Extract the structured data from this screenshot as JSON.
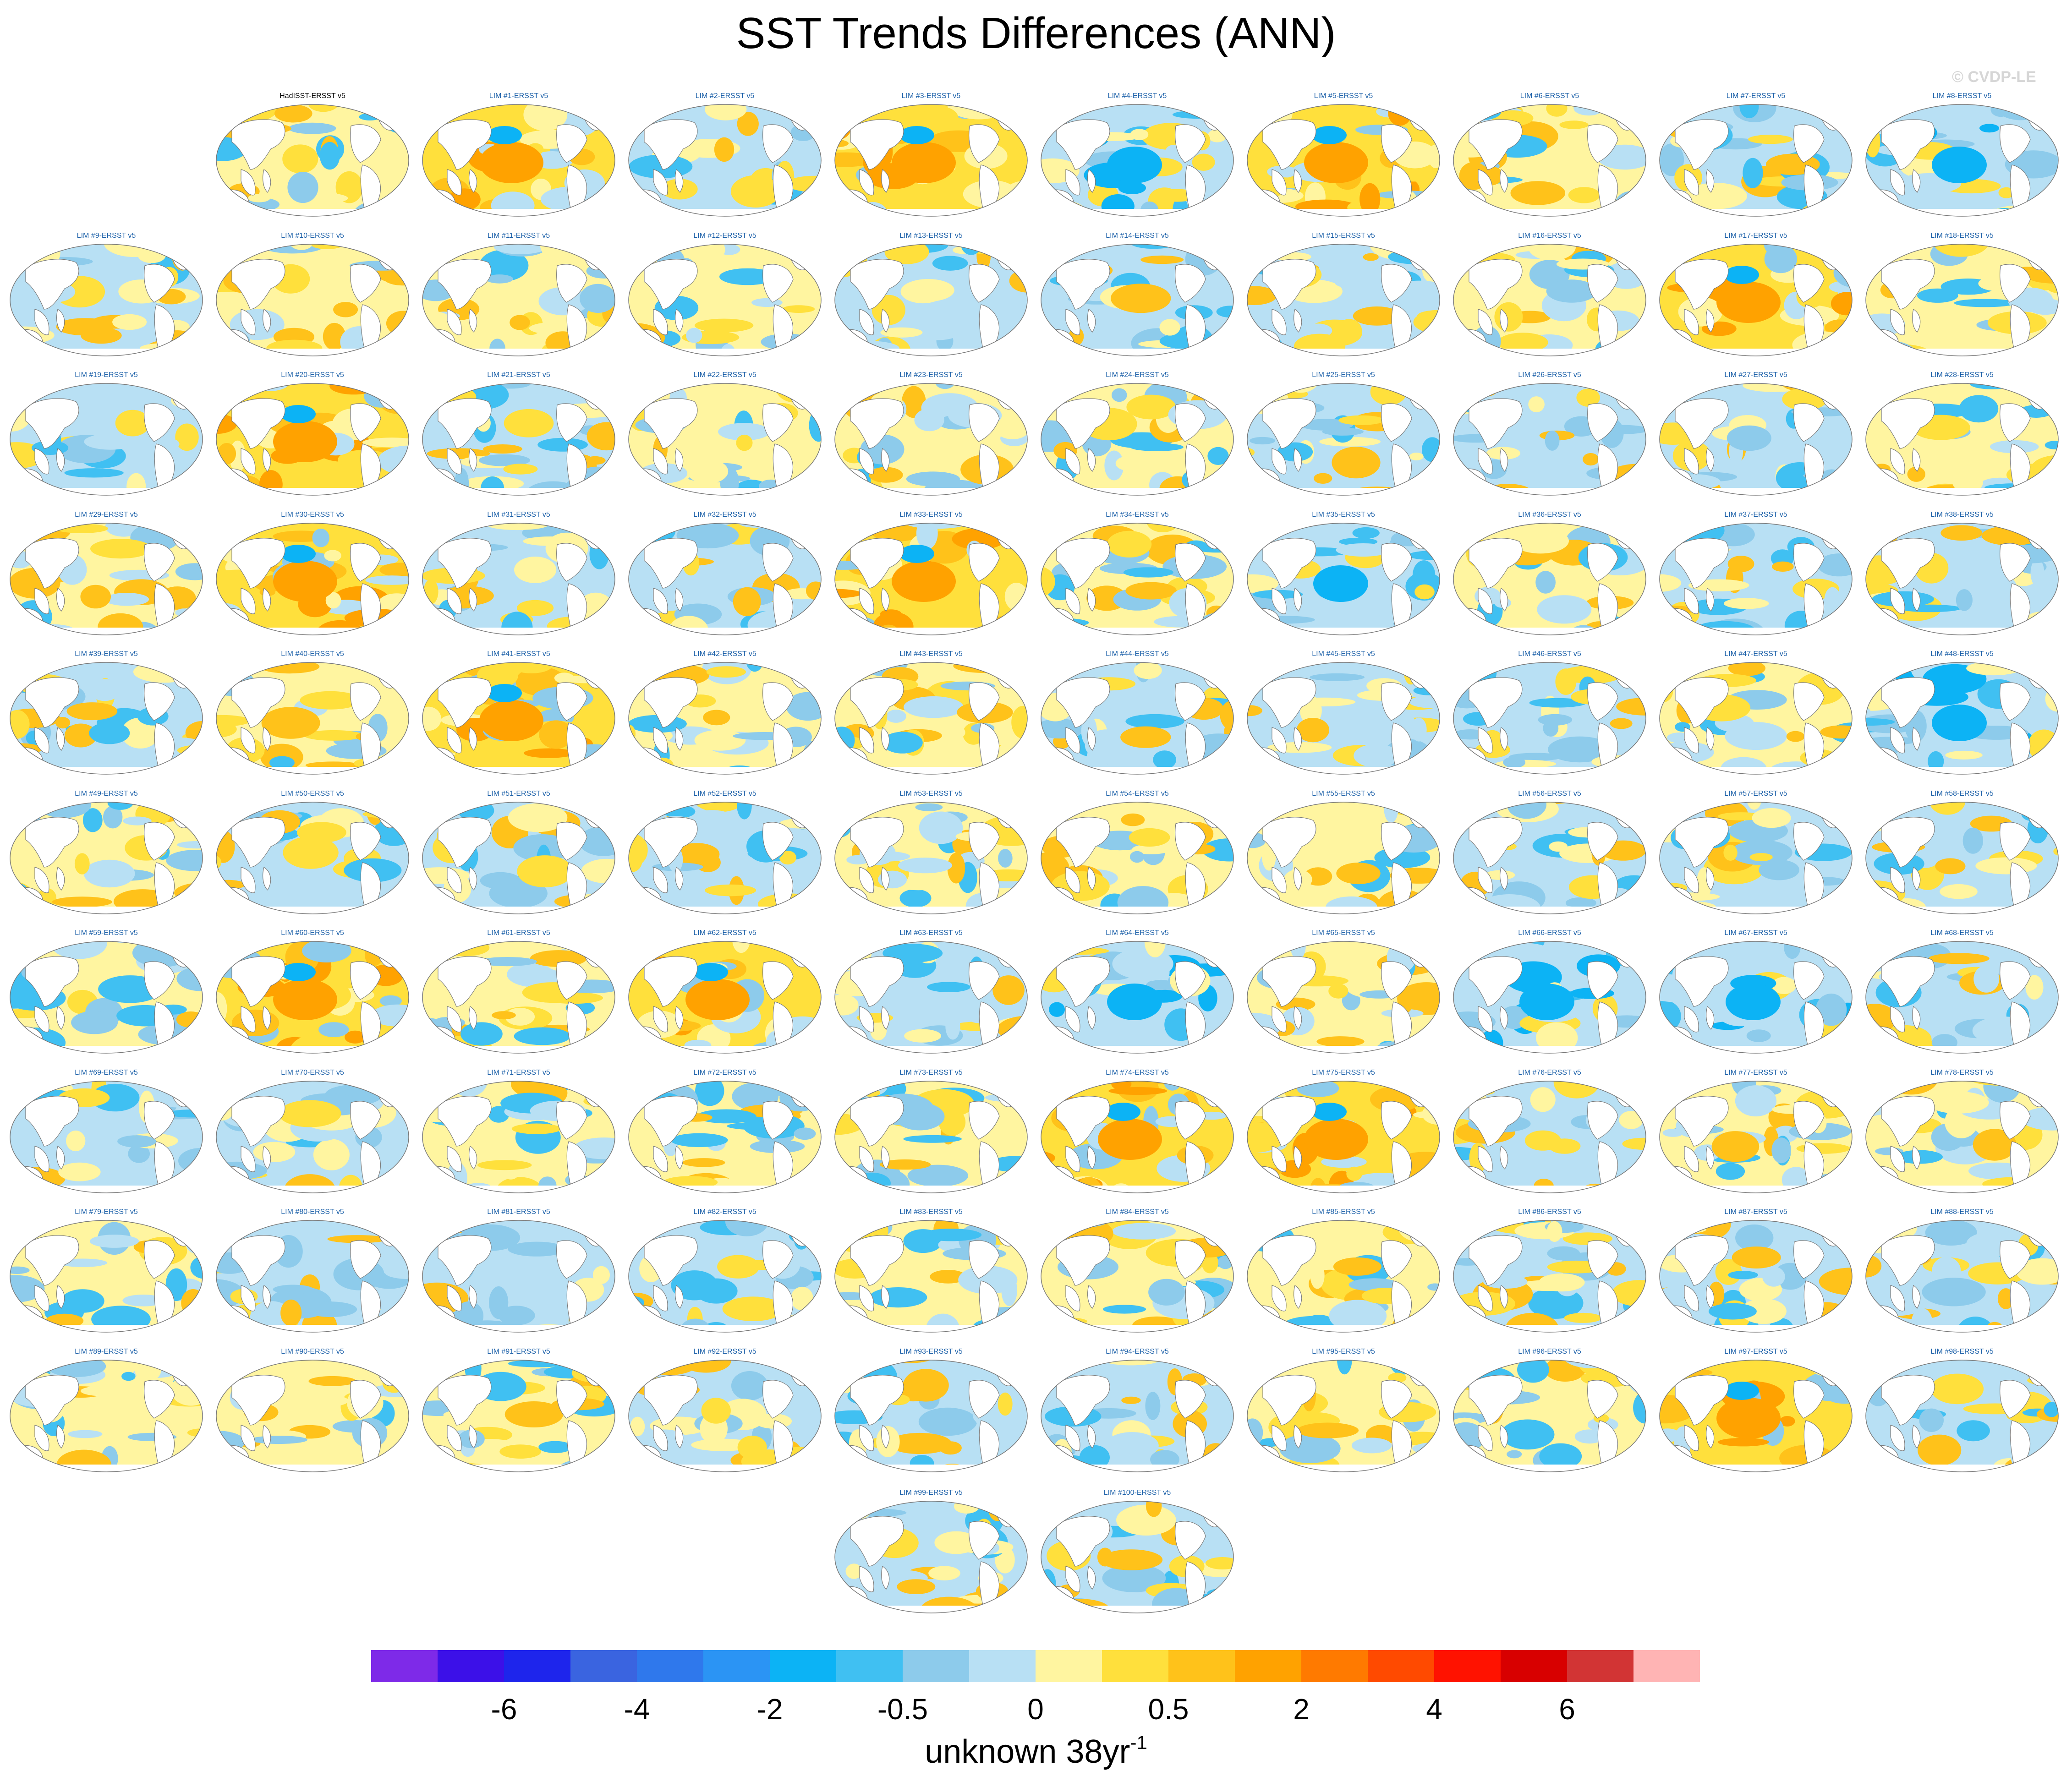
{
  "title": "SST Trends Differences (ANN)",
  "watermark": "© CVDP-LE",
  "panels": [
    {
      "label": "HadISST-ERSST v5",
      "type": "obs",
      "pattern": "mixed-light"
    },
    {
      "label": "LIM #1-ERSST v5"
    },
    {
      "label": "LIM #2-ERSST v5"
    },
    {
      "label": "LIM #3-ERSST v5"
    },
    {
      "label": "LIM #4-ERSST v5"
    },
    {
      "label": "LIM #5-ERSST v5"
    },
    {
      "label": "LIM #6-ERSST v5"
    },
    {
      "label": "LIM #7-ERSST v5"
    },
    {
      "label": "LIM #8-ERSST v5"
    },
    {
      "label": "LIM #9-ERSST v5"
    },
    {
      "label": "LIM #10-ERSST v5"
    },
    {
      "label": "LIM #11-ERSST v5"
    },
    {
      "label": "LIM #12-ERSST v5"
    },
    {
      "label": "LIM #13-ERSST v5"
    },
    {
      "label": "LIM #14-ERSST v5"
    },
    {
      "label": "LIM #15-ERSST v5"
    },
    {
      "label": "LIM #16-ERSST v5"
    },
    {
      "label": "LIM #17-ERSST v5"
    },
    {
      "label": "LIM #18-ERSST v5"
    },
    {
      "label": "LIM #19-ERSST v5"
    },
    {
      "label": "LIM #20-ERSST v5"
    },
    {
      "label": "LIM #21-ERSST v5"
    },
    {
      "label": "LIM #22-ERSST v5"
    },
    {
      "label": "LIM #23-ERSST v5"
    },
    {
      "label": "LIM #24-ERSST v5"
    },
    {
      "label": "LIM #25-ERSST v5"
    },
    {
      "label": "LIM #26-ERSST v5"
    },
    {
      "label": "LIM #27-ERSST v5"
    },
    {
      "label": "LIM #28-ERSST v5"
    },
    {
      "label": "LIM #29-ERSST v5"
    },
    {
      "label": "LIM #30-ERSST v5"
    },
    {
      "label": "LIM #31-ERSST v5"
    },
    {
      "label": "LIM #32-ERSST v5"
    },
    {
      "label": "LIM #33-ERSST v5"
    },
    {
      "label": "LIM #34-ERSST v5"
    },
    {
      "label": "LIM #35-ERSST v5"
    },
    {
      "label": "LIM #36-ERSST v5"
    },
    {
      "label": "LIM #37-ERSST v5"
    },
    {
      "label": "LIM #38-ERSST v5"
    },
    {
      "label": "LIM #39-ERSST v5"
    },
    {
      "label": "LIM #40-ERSST v5"
    },
    {
      "label": "LIM #41-ERSST v5"
    },
    {
      "label": "LIM #42-ERSST v5"
    },
    {
      "label": "LIM #43-ERSST v5"
    },
    {
      "label": "LIM #44-ERSST v5"
    },
    {
      "label": "LIM #45-ERSST v5"
    },
    {
      "label": "LIM #46-ERSST v5"
    },
    {
      "label": "LIM #47-ERSST v5"
    },
    {
      "label": "LIM #48-ERSST v5"
    },
    {
      "label": "LIM #49-ERSST v5"
    },
    {
      "label": "LIM #50-ERSST v5"
    },
    {
      "label": "LIM #51-ERSST v5"
    },
    {
      "label": "LIM #52-ERSST v5"
    },
    {
      "label": "LIM #53-ERSST v5"
    },
    {
      "label": "LIM #54-ERSST v5"
    },
    {
      "label": "LIM #55-ERSST v5"
    },
    {
      "label": "LIM #56-ERSST v5"
    },
    {
      "label": "LIM #57-ERSST v5"
    },
    {
      "label": "LIM #58-ERSST v5"
    },
    {
      "label": "LIM #59-ERSST v5"
    },
    {
      "label": "LIM #60-ERSST v5"
    },
    {
      "label": "LIM #61-ERSST v5"
    },
    {
      "label": "LIM #62-ERSST v5"
    },
    {
      "label": "LIM #63-ERSST v5"
    },
    {
      "label": "LIM #64-ERSST v5"
    },
    {
      "label": "LIM #65-ERSST v5"
    },
    {
      "label": "LIM #66-ERSST v5"
    },
    {
      "label": "LIM #67-ERSST v5"
    },
    {
      "label": "LIM #68-ERSST v5"
    },
    {
      "label": "LIM #69-ERSST v5"
    },
    {
      "label": "LIM #70-ERSST v5"
    },
    {
      "label": "LIM #71-ERSST v5"
    },
    {
      "label": "LIM #72-ERSST v5"
    },
    {
      "label": "LIM #73-ERSST v5"
    },
    {
      "label": "LIM #74-ERSST v5"
    },
    {
      "label": "LIM #75-ERSST v5"
    },
    {
      "label": "LIM #76-ERSST v5"
    },
    {
      "label": "LIM #77-ERSST v5"
    },
    {
      "label": "LIM #78-ERSST v5"
    },
    {
      "label": "LIM #79-ERSST v5"
    },
    {
      "label": "LIM #80-ERSST v5"
    },
    {
      "label": "LIM #81-ERSST v5"
    },
    {
      "label": "LIM #82-ERSST v5"
    },
    {
      "label": "LIM #83-ERSST v5"
    },
    {
      "label": "LIM #84-ERSST v5"
    },
    {
      "label": "LIM #85-ERSST v5"
    },
    {
      "label": "LIM #86-ERSST v5"
    },
    {
      "label": "LIM #87-ERSST v5"
    },
    {
      "label": "LIM #88-ERSST v5"
    },
    {
      "label": "LIM #89-ERSST v5"
    },
    {
      "label": "LIM #90-ERSST v5"
    },
    {
      "label": "LIM #91-ERSST v5"
    },
    {
      "label": "LIM #92-ERSST v5"
    },
    {
      "label": "LIM #93-ERSST v5"
    },
    {
      "label": "LIM #94-ERSST v5"
    },
    {
      "label": "LIM #95-ERSST v5"
    },
    {
      "label": "LIM #96-ERSST v5"
    },
    {
      "label": "LIM #97-ERSST v5"
    },
    {
      "label": "LIM #98-ERSST v5"
    },
    {
      "label": "LIM #99-ERSST v5"
    },
    {
      "label": "LIM #100-ERSST v5"
    }
  ],
  "strong_warm_panels": [
    1,
    3,
    5,
    17,
    20,
    30,
    33,
    41,
    60,
    62,
    74,
    75,
    97
  ],
  "strong_cool_panels": [
    4,
    35,
    64,
    66,
    67,
    8,
    48
  ],
  "colorbar": {
    "colors": [
      "#7e2ae8",
      "#3c10e8",
      "#1e25ec",
      "#3a64e0",
      "#2f78ec",
      "#2b94f4",
      "#0cb3f5",
      "#40c0f2",
      "#8dcbeb",
      "#b8e0f4",
      "#fff5a0",
      "#ffe03c",
      "#ffc21a",
      "#ffa200",
      "#ff7a00",
      "#ff4a00",
      "#ff1200",
      "#d80000",
      "#d23434",
      "#ffb4b4"
    ],
    "tick_labels": [
      "-6",
      "-4",
      "-2",
      "-0.5",
      "0",
      "0.5",
      "2",
      "4",
      "6"
    ],
    "units_main": "unknown 38yr",
    "units_exp": "-1"
  },
  "land_color": "#ffffff",
  "coast_color": "#7a7a7a"
}
